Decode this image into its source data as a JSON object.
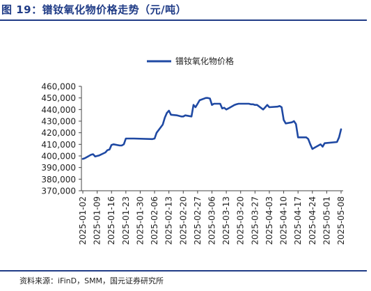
{
  "figure": {
    "title": "图 19：镨钕氧化物价格走势（元/吨）",
    "source": "资料来源：iFinD，SMM，国元证券研究所"
  },
  "colors": {
    "line": "#1f49a3",
    "title": "#1f3b86",
    "axis": "#444444"
  },
  "chart_data": {
    "type": "line",
    "legend": "top-center",
    "grid": false,
    "ylim": [
      370000,
      460000
    ],
    "ytick_labels": [
      "370,000",
      "380,000",
      "390,000",
      "400,000",
      "410,000",
      "420,000",
      "430,000",
      "440,000",
      "450,000",
      "460,000"
    ],
    "xtick_labels": [
      "2025-01-02",
      "2025-01-09",
      "2025-01-16",
      "2025-01-23",
      "2025-01-30",
      "2025-02-06",
      "2025-02-13",
      "2025-02-20",
      "2025-02-27",
      "2025-03-06",
      "2025-03-13",
      "2025-03-20",
      "2025-03-27",
      "2025-04-03",
      "2025-04-10",
      "2025-04-17",
      "2025-04-24",
      "2025-05-01",
      "2025-05-08"
    ],
    "series": [
      {
        "name": "镨钕氧化物价格",
        "x": [
          "2025-01-02",
          "2025-01-03",
          "2025-01-06",
          "2025-01-07",
          "2025-01-08",
          "2025-01-09",
          "2025-01-10",
          "2025-01-13",
          "2025-01-14",
          "2025-01-15",
          "2025-01-16",
          "2025-01-17",
          "2025-01-20",
          "2025-01-21",
          "2025-01-22",
          "2025-01-23",
          "2025-01-24",
          "2025-01-27",
          "2025-02-05",
          "2025-02-06",
          "2025-02-07",
          "2025-02-10",
          "2025-02-11",
          "2025-02-12",
          "2025-02-13",
          "2025-02-14",
          "2025-02-17",
          "2025-02-18",
          "2025-02-19",
          "2025-02-20",
          "2025-02-21",
          "2025-02-24",
          "2025-02-25",
          "2025-02-26",
          "2025-02-27",
          "2025-02-28",
          "2025-03-03",
          "2025-03-04",
          "2025-03-05",
          "2025-03-06",
          "2025-03-07",
          "2025-03-10",
          "2025-03-11",
          "2025-03-12",
          "2025-03-13",
          "2025-03-14",
          "2025-03-17",
          "2025-03-18",
          "2025-03-19",
          "2025-03-20",
          "2025-03-21",
          "2025-03-24",
          "2025-03-25",
          "2025-03-26",
          "2025-03-27",
          "2025-03-28",
          "2025-03-31",
          "2025-04-01",
          "2025-04-02",
          "2025-04-03",
          "2025-04-07",
          "2025-04-08",
          "2025-04-09",
          "2025-04-10",
          "2025-04-11",
          "2025-04-14",
          "2025-04-15",
          "2025-04-16",
          "2025-04-17",
          "2025-04-18",
          "2025-04-21",
          "2025-04-22",
          "2025-04-23",
          "2025-04-24",
          "2025-04-25",
          "2025-04-28",
          "2025-04-29",
          "2025-04-30",
          "2025-05-06",
          "2025-05-07",
          "2025-05-08"
        ],
        "values": [
          397500,
          398000,
          401000,
          401500,
          399500,
          400000,
          400500,
          403000,
          405000,
          405500,
          409500,
          410000,
          409000,
          409000,
          410000,
          415000,
          415000,
          415000,
          414500,
          415000,
          420000,
          427000,
          433000,
          437000,
          439000,
          435500,
          435000,
          434500,
          434000,
          434000,
          435000,
          434000,
          444000,
          442000,
          445000,
          448000,
          450000,
          450000,
          449500,
          444000,
          445000,
          445000,
          441000,
          441500,
          440000,
          441000,
          444000,
          444500,
          445000,
          445000,
          445000,
          445000,
          444500,
          444500,
          444000,
          444000,
          440000,
          442000,
          444000,
          442000,
          442500,
          443000,
          442000,
          431000,
          428000,
          429000,
          430000,
          427500,
          416000,
          416000,
          416000,
          414500,
          410000,
          406000,
          407000,
          410000,
          408000,
          411000,
          412000,
          416000,
          423000
        ]
      }
    ]
  }
}
